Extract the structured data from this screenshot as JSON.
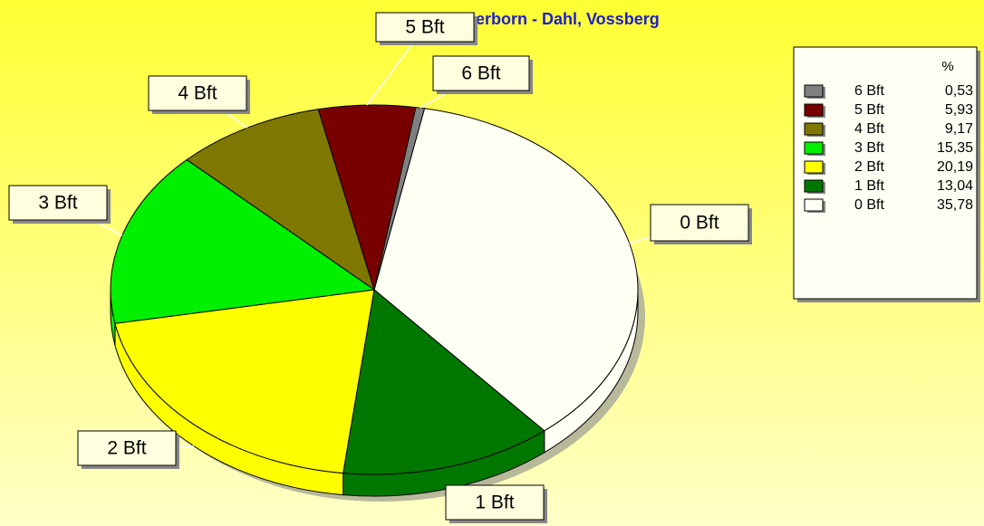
{
  "chart_data": {
    "type": "pie",
    "title": "lerborn - Dahl, Vossberg",
    "legend_title": "%",
    "categories": [
      "0 Bft",
      "1 Bft",
      "2 Bft",
      "3 Bft",
      "4 Bft",
      "5 Bft",
      "6 Bft"
    ],
    "values": [
      35.78,
      13.04,
      20.19,
      15.35,
      9.17,
      5.93,
      0.53
    ],
    "value_labels": [
      "35,78",
      "13,04",
      "20,19",
      "15,35",
      "9,17",
      "5,93",
      "0,53"
    ],
    "colors": [
      "#fffff4",
      "#007800",
      "#ffff00",
      "#00f000",
      "#7f7800",
      "#780000",
      "#808080"
    ],
    "legend": "top-right"
  }
}
